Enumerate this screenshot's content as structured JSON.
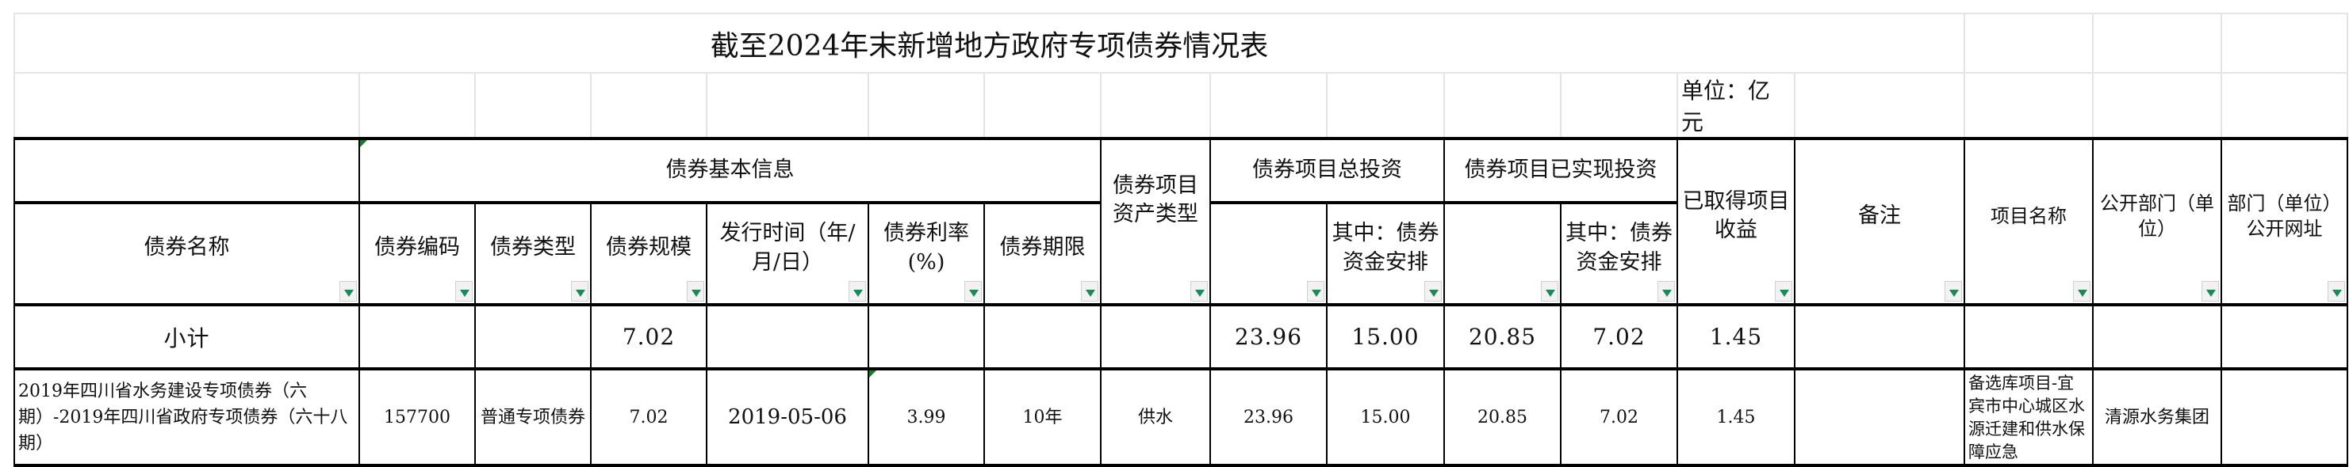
{
  "title": "截至2024年末新增地方政府专项债券情况表",
  "unit": "单位：亿元",
  "header": {
    "bond_name": "债券名称",
    "basic_info": "债券基本信息",
    "bond_code": "债券编码",
    "bond_type": "债券类型",
    "bond_scale": "债券规模",
    "issue_date": "发行时间（年/月/日）",
    "interest_rate": "债券利率(%)",
    "term": "债券期限",
    "asset_type": "债券项目资产类型",
    "total_investment": "债券项目总投资",
    "total_of_which": "其中：债券资金安排",
    "realized_investment": "债券项目已实现投资",
    "realized_of_which": "其中：债券资金安排",
    "income": "已取得项目收益",
    "remarks": "备注",
    "project_name": "项目名称",
    "department": "公开部门（单位）",
    "website": "部门（单位）公开网址"
  },
  "subtotal": {
    "label": "小计",
    "bond_scale": "7.02",
    "total_investment": "23.96",
    "total_of_which": "15.00",
    "realized_investment": "20.85",
    "realized_of_which": "7.02",
    "income": "1.45"
  },
  "rows": [
    {
      "bond_name": "2019年四川省水务建设专项债券（六期）-2019年四川省政府专项债券（六十八期）",
      "bond_code": "157700",
      "bond_type": "普通专项债券",
      "bond_scale": "7.02",
      "issue_date": "2019-05-06",
      "interest_rate": "3.99",
      "term": "10年",
      "asset_type": "供水",
      "total_investment": "23.96",
      "total_of_which": "15.00",
      "realized_investment": "20.85",
      "realized_of_which": "7.02",
      "income": "1.45",
      "remarks": "",
      "project_name": "备选库项目-宜宾市中心城区水源迁建和供水保障应急",
      "department": "清源水务集团",
      "website": ""
    }
  ],
  "colors": {
    "filter_arrow": "#1a8a5a",
    "grid": "#e4e4e4",
    "border": "#000000"
  }
}
